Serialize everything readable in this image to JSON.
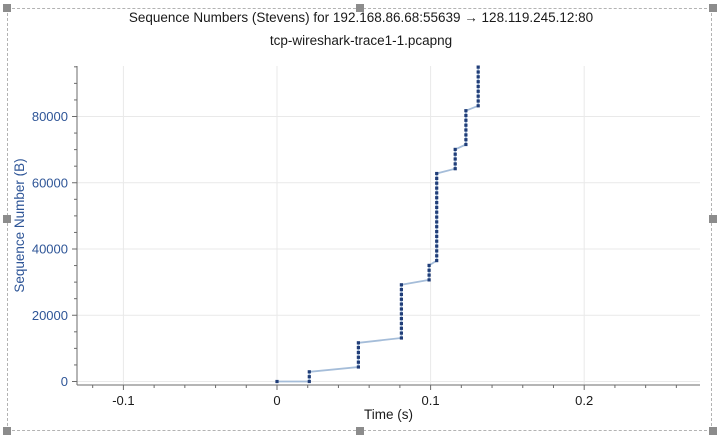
{
  "chart": {
    "title": "Sequence Numbers (Stevens) for 192.168.86.68:55639 → 128.119.245.12:80",
    "subtitle": "tcp-wireshark-trace1-1.pcapng",
    "x_axis_label": "Time (s)",
    "y_axis_label": "Sequence Number (B)"
  },
  "chart_data": {
    "type": "scatter",
    "title": "Sequence Numbers (Stevens) for 192.168.86.68:55639 → 128.119.245.12:80",
    "subtitle": "tcp-wireshark-trace1-1.pcapng",
    "xlabel": "Time (s)",
    "ylabel": "Sequence Number (B)",
    "xlim": [
      -0.13,
      0.2753
    ],
    "ylim": [
      -1100,
      95300
    ],
    "x_tick_values": [
      -0.1,
      0,
      0.1,
      0.2
    ],
    "x_tick_labels": [
      "-0.1",
      "0",
      "0.1",
      "0.2"
    ],
    "y_tick_values": [
      0,
      20000,
      40000,
      60000,
      80000
    ],
    "y_tick_labels": [
      "0",
      "20000",
      "40000",
      "60000",
      "80000"
    ],
    "x_minor_step": 0.02,
    "y_minor_step": 5000,
    "grid": true,
    "legend": "none",
    "colors": {
      "dot": "#203d78",
      "line": "#a5bdd9",
      "axis": "#6b6b6b",
      "grid": "#e9e9e9",
      "y_text": "#2e5597",
      "x_text": "#1a1a1a",
      "title_text": "#1a1a1a",
      "handle": "#8c8c8c"
    },
    "points": [
      [
        0.0,
        0
      ],
      [
        0.021,
        1
      ],
      [
        0.021,
        1460
      ],
      [
        0.021,
        2920
      ],
      [
        0.053,
        4380
      ],
      [
        0.053,
        5840
      ],
      [
        0.053,
        7300
      ],
      [
        0.053,
        8760
      ],
      [
        0.053,
        10220
      ],
      [
        0.053,
        11680
      ],
      [
        0.081,
        13140
      ],
      [
        0.081,
        14600
      ],
      [
        0.081,
        16060
      ],
      [
        0.081,
        17520
      ],
      [
        0.081,
        18980
      ],
      [
        0.081,
        20440
      ],
      [
        0.081,
        21900
      ],
      [
        0.081,
        23360
      ],
      [
        0.081,
        24820
      ],
      [
        0.081,
        26280
      ],
      [
        0.081,
        27740
      ],
      [
        0.081,
        29200
      ],
      [
        0.099,
        30660
      ],
      [
        0.099,
        32120
      ],
      [
        0.099,
        33580
      ],
      [
        0.099,
        35040
      ],
      [
        0.104,
        36500
      ],
      [
        0.104,
        37960
      ],
      [
        0.104,
        39420
      ],
      [
        0.104,
        40880
      ],
      [
        0.104,
        42340
      ],
      [
        0.104,
        43800
      ],
      [
        0.104,
        45260
      ],
      [
        0.104,
        46720
      ],
      [
        0.104,
        48180
      ],
      [
        0.104,
        49640
      ],
      [
        0.104,
        51100
      ],
      [
        0.104,
        52560
      ],
      [
        0.104,
        54020
      ],
      [
        0.104,
        55480
      ],
      [
        0.104,
        56940
      ],
      [
        0.104,
        58400
      ],
      [
        0.104,
        59860
      ],
      [
        0.104,
        61320
      ],
      [
        0.104,
        62780
      ],
      [
        0.116,
        64240
      ],
      [
        0.116,
        65700
      ],
      [
        0.116,
        67160
      ],
      [
        0.116,
        68620
      ],
      [
        0.116,
        70080
      ],
      [
        0.123,
        71540
      ],
      [
        0.123,
        73000
      ],
      [
        0.123,
        74460
      ],
      [
        0.123,
        75920
      ],
      [
        0.123,
        77380
      ],
      [
        0.123,
        78840
      ],
      [
        0.123,
        80300
      ],
      [
        0.123,
        81760
      ],
      [
        0.131,
        83220
      ],
      [
        0.131,
        84680
      ],
      [
        0.131,
        86140
      ],
      [
        0.131,
        87600
      ],
      [
        0.131,
        89060
      ],
      [
        0.131,
        90520
      ],
      [
        0.131,
        91980
      ],
      [
        0.131,
        93440
      ],
      [
        0.131,
        94900
      ]
    ]
  }
}
